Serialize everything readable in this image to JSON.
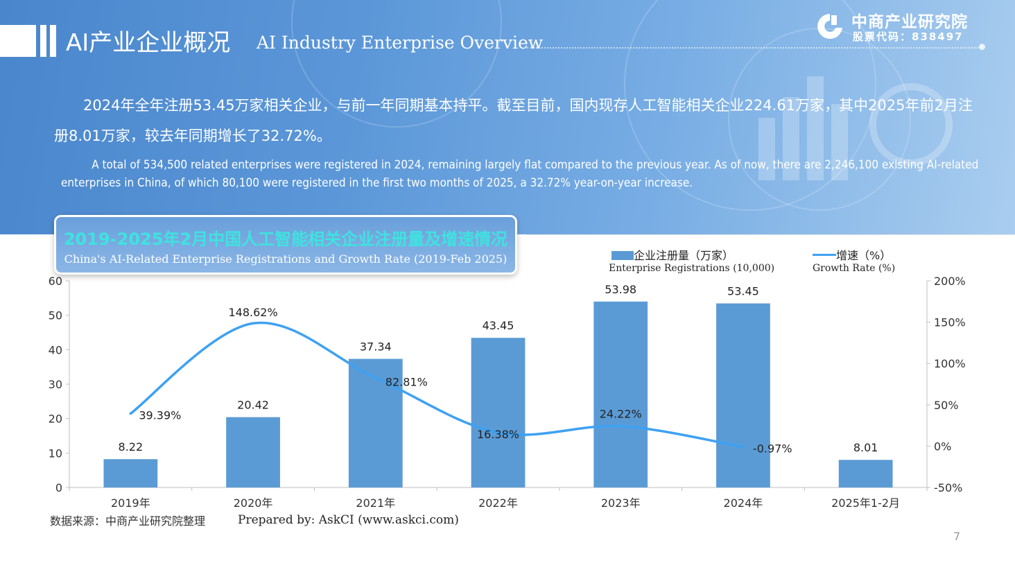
{
  "header": {
    "title_cn": "AI产业企业概况",
    "title_en": "AI Industry Enterprise Overview",
    "logo_name": "中商产业研究院",
    "logo_code": "股票代码：838497",
    "colors": {
      "header_bg": "#5b97d8",
      "accent_cyan": "#3fe3e0"
    }
  },
  "summary": {
    "cn": "2024年全年注册53.45万家相关企业，与前一年同期基本持平。截至目前，国内现存人工智能相关企业224.61万家，其中2025年前2月注册8.01万家，较去年同期增长了32.72%。",
    "en": "A total of 534,500 related enterprises were registered in 2024, remaining largely flat compared to the previous year. As of now, there are 2,246,100 existing AI-related enterprises in China, of which 80,100 were registered in the first two months of 2025, a 32.72% year-on-year increase."
  },
  "chart_data": {
    "type": "bar",
    "title": "2019-2025年2月中国人工智能相关企业注册量及增速情况",
    "subtitle": "China's AI-Related Enterprise Registrations and Growth Rate (2019-Feb 2025)",
    "categories": [
      "2019年",
      "2020年",
      "2021年",
      "2022年",
      "2023年",
      "2024年",
      "2025年1-2月"
    ],
    "series": [
      {
        "name": "企业注册量（万家）",
        "name_en": "Enterprise Registrations (10,000)",
        "type": "bar",
        "axis": "left",
        "color": "#5b9bd5",
        "values": [
          8.22,
          20.42,
          37.34,
          43.45,
          53.98,
          53.45,
          8.01
        ],
        "labels": [
          "8.22",
          "20.42",
          "37.34",
          "43.45",
          "53.98",
          "53.45",
          "8.01"
        ]
      },
      {
        "name": "增速（%）",
        "name_en": "Growth Rate (%)",
        "type": "line",
        "axis": "right",
        "color": "#3ea1f2",
        "values": [
          39.39,
          148.62,
          82.81,
          16.38,
          24.22,
          -0.97,
          null
        ],
        "labels": [
          "39.39%",
          "148.62%",
          "82.81%",
          "16.38%",
          "24.22%",
          "-0.97%",
          ""
        ]
      }
    ],
    "ylim_left": [
      0,
      60
    ],
    "yticks_left": [
      "0",
      "10",
      "20",
      "30",
      "40",
      "50",
      "60"
    ],
    "ylim_right": [
      -50,
      200
    ],
    "yticks_right": [
      "-50%",
      "0%",
      "50%",
      "100%",
      "150%",
      "200%"
    ],
    "legend": "top-right",
    "grid": false
  },
  "footer": {
    "source_cn": "数据来源：中商产业研究院整理",
    "source_en": "Prepared by: AskCI (www.askci.com)",
    "page": "7"
  }
}
